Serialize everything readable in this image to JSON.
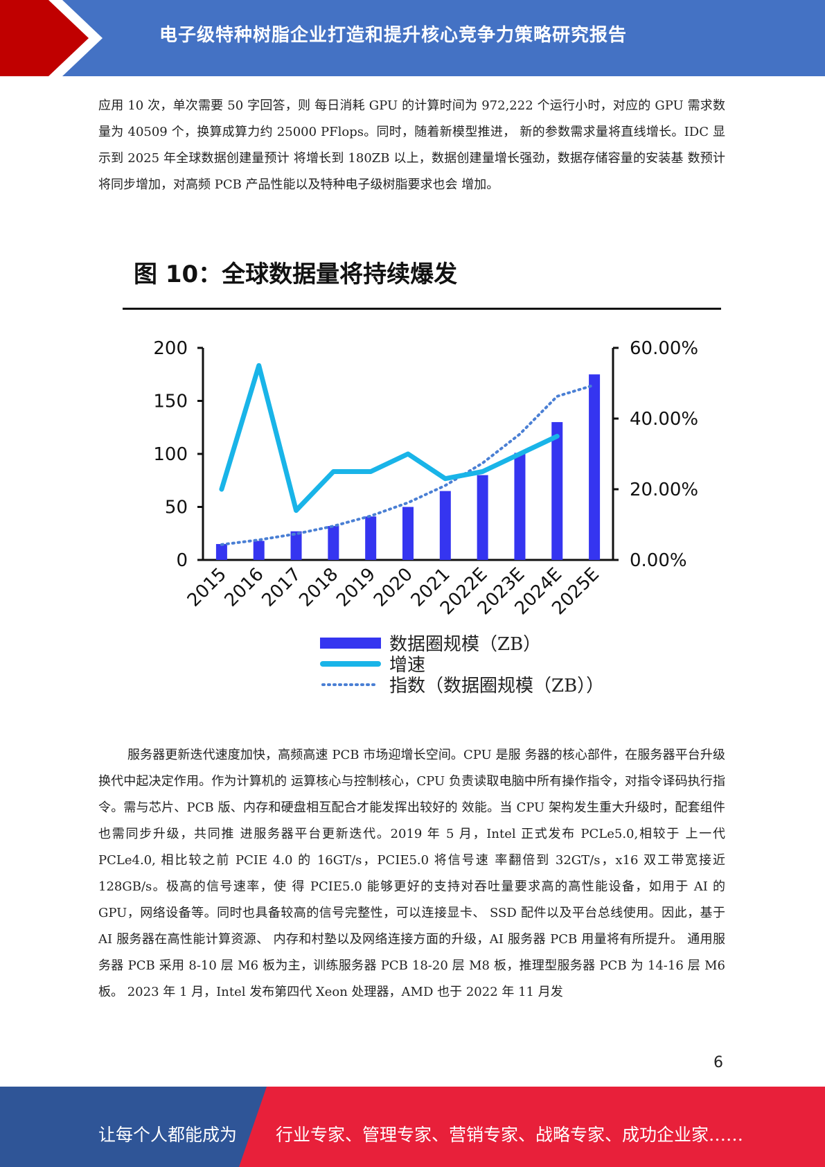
{
  "header": {
    "title": "电子级特种树脂企业打造和提升核心竞争力策略研究报告",
    "colors": {
      "bar": "#4472c4",
      "chevron": "#c00000"
    }
  },
  "paragraphs": {
    "intro": "应用 10 次，单次需要 50 字回答，则 每日消耗 GPU 的计算时间为 972,222 个运行小时，对应的 GPU 需求数量为 40509 个，换算成算力约 25000 PFlops。同时，随着新模型推进， 新的参数需求量将直线增长。IDC 显示到 2025 年全球数据创建量预计 将增长到 180ZB 以上，数据创建量增长强劲，数据存储容量的安装基 数预计将同步增加，对高频 PCB 产品性能以及特种电子级树脂要求也会 增加。",
    "body": "服务器更新迭代速度加快，高频高速 PCB 市场迎增长空间。CPU 是服 务器的核心部件，在服务器平台升级换代中起决定作用。作为计算机的 运算核心与控制核心，CPU 负责读取电脑中所有操作指令，对指令译码执行指令。需与芯片、PCB 版、内存和硬盘相互配合才能发挥出较好的 效能。当 CPU 架构发生重大升级时，配套组件也需同步升级，共同推 进服务器平台更新迭代。2019 年 5 月，Intel 正式发布 PCLe5.0,相较于 上一代 PCLe4.0, 相比较之前 PCIE 4.0 的 16GT/s，PCIE5.0 将信号速 率翻倍到 32GT/s，x16 双工带宽接近 128GB/s。极高的信号速率，使 得 PCIE5.0 能够更好的支持对吞吐量要求高的高性能设备，如用于 AI 的 GPU，网络设备等。同时也具备较高的信号完整性，可以连接显卡、 SSD 配件以及平台总线使用。因此，基于 AI 服务器在高性能计算资源、 内存和村塾以及网络连接方面的升级，AI 服务器 PCB 用量将有所提升。 通用服务器 PCB 采用 8-10 层 M6 板为主，训练服务器 PCB 18-20 层 M8 板，推理型服务器 PCB 为 14-16 层 M6 板。 2023 年 1 月，Intel 发布第四代 Xeon 处理器，AMD 也于 2022 年 11 月发"
  },
  "figure": {
    "title": "图 10：全球数据量将持续爆发"
  },
  "chart_data": {
    "type": "bar",
    "categories": [
      "2015",
      "2016",
      "2017",
      "2018",
      "2019",
      "2020",
      "2021",
      "2022E",
      "2023E",
      "2024E",
      "2025E"
    ],
    "series": [
      {
        "name": "数据圈规模（ZB）",
        "kind": "bar",
        "axis": "left",
        "color": "#3535f0",
        "values": [
          15,
          18,
          27,
          32,
          41,
          50,
          65,
          80,
          101,
          130,
          175
        ]
      },
      {
        "name": "增速",
        "kind": "line",
        "axis": "right",
        "color": "#19b4e8",
        "values": [
          0.2,
          0.55,
          0.14,
          0.25,
          0.25,
          0.3,
          0.23,
          0.25,
          0.3,
          0.35,
          null
        ]
      },
      {
        "name": "指数（数据圈规模（ZB））",
        "kind": "trendline",
        "axis": "left",
        "color": "#4a7fd4",
        "values": [
          14.5,
          18.9,
          24.6,
          31.9,
          41.5,
          54.0,
          70.2,
          91.3,
          118.7,
          154.3,
          165
        ]
      }
    ],
    "yleft": {
      "range": [
        0,
        200
      ],
      "ticks": [
        "0",
        "50",
        "100",
        "150",
        "200"
      ]
    },
    "yright": {
      "range": [
        0,
        0.6
      ],
      "ticks": [
        "0.00%",
        "20.00%",
        "40.00%",
        "60.00%"
      ]
    },
    "legend": "bottom",
    "grid": false
  },
  "page_number": "6",
  "footer": {
    "left": "让每个人都能成为",
    "right": "行业专家、管理专家、营销专家、战略专家、成功企业家……",
    "colors": {
      "left": "#2f5597",
      "right": "#e8203a"
    }
  }
}
